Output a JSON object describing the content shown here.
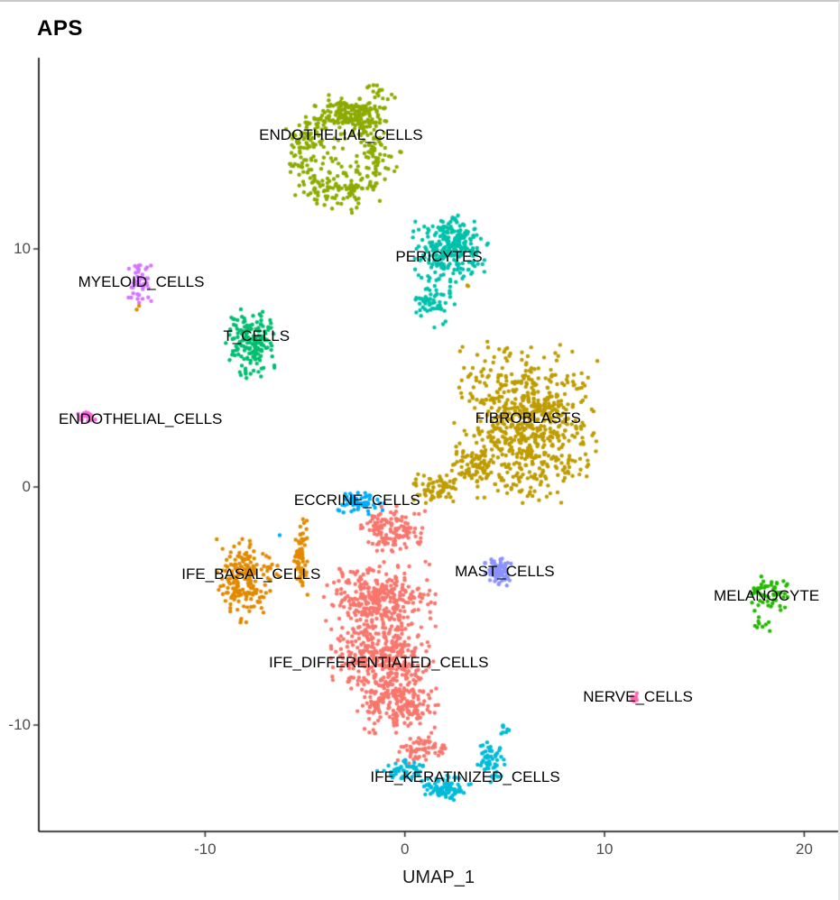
{
  "page": {
    "title": "APS"
  },
  "chart_data": {
    "type": "scatter",
    "title": "APS",
    "xlabel": "UMAP_1",
    "ylabel": "",
    "xlim": [
      -18.33,
      21.7
    ],
    "ylim": [
      -14.47,
      18.03
    ],
    "grid": false,
    "legend": "none",
    "point_radius_px": 2.2,
    "x_ticks": [
      {
        "value": -10,
        "label": "-10"
      },
      {
        "value": 0,
        "label": "0"
      },
      {
        "value": 10,
        "label": "10"
      },
      {
        "value": 20,
        "label": "20"
      }
    ],
    "y_ticks": [
      {
        "value": 10,
        "label": "10"
      },
      {
        "value": 0,
        "label": "0"
      },
      {
        "value": -10,
        "label": "-10"
      }
    ],
    "clusters": [
      {
        "name": "ENDOTHELIAL_CELLS",
        "color": "#8CAB00",
        "label": {
          "text": "ENDOTHELIAL_CELLS",
          "x": -3.2,
          "y": 14.77
        },
        "blobs": [
          {
            "shape": "ring",
            "cx": -3.3,
            "cy": 13.95,
            "rx": 2.35,
            "ry": 2.0,
            "n": 340
          },
          {
            "shape": "disc",
            "cx": -2.5,
            "cy": 15.75,
            "rx": 1.5,
            "ry": 0.6,
            "n": 110
          },
          {
            "shape": "disc",
            "cx": -1.2,
            "cy": 16.55,
            "rx": 0.9,
            "ry": 0.4,
            "n": 14
          },
          {
            "shape": "disc",
            "cx": -3.3,
            "cy": 13.95,
            "rx": 1.6,
            "ry": 1.4,
            "n": 30
          }
        ]
      },
      {
        "name": "PERICYTES",
        "color": "#00C1AB",
        "label": {
          "text": "PERICYTES",
          "x": 1.71,
          "y": 9.66
        },
        "blobs": [
          {
            "shape": "disc",
            "cx": 2.3,
            "cy": 10.05,
            "rx": 1.8,
            "ry": 1.35,
            "n": 260
          },
          {
            "shape": "disc",
            "cx": 1.4,
            "cy": 7.9,
            "rx": 1.0,
            "ry": 0.8,
            "n": 60
          },
          {
            "shape": "disc",
            "cx": 1.7,
            "cy": 6.9,
            "rx": 0.35,
            "ry": 0.25,
            "n": 3
          }
        ]
      },
      {
        "name": "MYELOID_CELLS",
        "color": "#D575FE",
        "label": {
          "text": "MYELOID_CELLS",
          "x": -13.2,
          "y": 8.6
        },
        "blobs": [
          {
            "shape": "disc",
            "cx": -13.24,
            "cy": 8.52,
            "rx": 0.55,
            "ry": 0.95,
            "n": 48
          }
        ]
      },
      {
        "name": "T_CELLS",
        "color": "#00BE70",
        "label": {
          "text": "T_CELLS",
          "x": -7.43,
          "y": 6.33
        },
        "blobs": [
          {
            "shape": "disc",
            "cx": -7.7,
            "cy": 6.05,
            "rx": 1.2,
            "ry": 1.35,
            "n": 170
          }
        ]
      },
      {
        "name": "ENDOTHELIAL_CELLS",
        "color": "#F962DD",
        "label": {
          "text": "ENDOTHELIAL_CELLS",
          "x": -13.24,
          "y": 2.84
        },
        "blobs": [
          {
            "shape": "disc",
            "cx": -15.95,
            "cy": 2.9,
            "rx": 0.55,
            "ry": 0.3,
            "n": 16
          }
        ]
      },
      {
        "name": "FIBROBLASTS",
        "color": "#BE9C00",
        "label": {
          "text": "FIBROBLASTS",
          "x": 6.17,
          "y": 2.88
        },
        "blobs": [
          {
            "shape": "disc",
            "cx": 6.1,
            "cy": 2.7,
            "rx": 3.3,
            "ry": 3.1,
            "n": 700
          },
          {
            "shape": "disc",
            "cx": 3.4,
            "cy": 0.9,
            "rx": 1.1,
            "ry": 0.8,
            "n": 70
          },
          {
            "shape": "disc",
            "cx": 1.6,
            "cy": -0.1,
            "rx": 1.3,
            "ry": 0.6,
            "n": 70
          },
          {
            "shape": "disc",
            "cx": 3.2,
            "cy": 8.5,
            "rx": 0.12,
            "ry": 0.1,
            "n": 2
          }
        ]
      },
      {
        "name": "ECCRINE_CELLS",
        "color": "#00ACFC",
        "label": {
          "text": "ECCRINE_CELLS",
          "x": -2.39,
          "y": -0.57
        },
        "blobs": [
          {
            "shape": "disc",
            "cx": -2.07,
            "cy": -0.72,
            "rx": 1.3,
            "ry": 0.45,
            "n": 60
          },
          {
            "shape": "disc",
            "cx": -6.26,
            "cy": -2.05,
            "rx": 0.05,
            "ry": 0.05,
            "n": 1
          }
        ]
      },
      {
        "name": "IFE_BASAL_CELLS",
        "color": "#E18A00",
        "label": {
          "text": "IFE_BASAL_CELLS",
          "x": -7.7,
          "y": -3.67
        },
        "blobs": [
          {
            "shape": "disc",
            "cx": -8.15,
            "cy": -3.94,
            "rx": 1.35,
            "ry": 1.6,
            "n": 180
          },
          {
            "shape": "disc",
            "cx": -5.18,
            "cy": -3.03,
            "rx": 0.4,
            "ry": 1.55,
            "n": 65
          },
          {
            "shape": "disc",
            "cx": -6.8,
            "cy": -3.6,
            "rx": 0.5,
            "ry": 0.5,
            "n": 8
          },
          {
            "shape": "disc",
            "cx": -13.35,
            "cy": 7.45,
            "rx": 0.1,
            "ry": 0.15,
            "n": 2
          }
        ]
      },
      {
        "name": "MAST_CELLS",
        "color": "#8B93FF",
        "label": {
          "text": "MAST_CELLS",
          "x": 5.0,
          "y": -3.56
        },
        "blobs": [
          {
            "shape": "disc",
            "cx": 4.68,
            "cy": -3.56,
            "rx": 0.63,
            "ry": 0.57,
            "n": 90
          }
        ]
      },
      {
        "name": "MELANOCYTE",
        "color": "#24B700",
        "label": {
          "text": "MELANOCYTE",
          "x": 18.11,
          "y": -4.58
        },
        "blobs": [
          {
            "shape": "disc",
            "cx": 18.3,
            "cy": -4.5,
            "rx": 0.95,
            "ry": 0.75,
            "n": 55
          },
          {
            "shape": "disc",
            "cx": 17.7,
            "cy": -5.75,
            "rx": 0.7,
            "ry": 0.4,
            "n": 9
          }
        ]
      },
      {
        "name": "IFE_DIFFERENTIATED_CELLS",
        "color": "#F8766D",
        "label": {
          "text": "IFE_DIFFERENTIATED_CELLS",
          "x": -1.31,
          "y": -7.39
        },
        "blobs": [
          {
            "shape": "disc",
            "cx": -0.63,
            "cy": -1.78,
            "rx": 1.5,
            "ry": 0.9,
            "n": 130
          },
          {
            "shape": "disc",
            "cx": -1.3,
            "cy": -4.8,
            "rx": 2.6,
            "ry": 1.6,
            "n": 350
          },
          {
            "shape": "disc",
            "cx": -1.08,
            "cy": -7.27,
            "rx": 2.4,
            "ry": 1.4,
            "n": 300
          },
          {
            "shape": "disc",
            "cx": -0.4,
            "cy": -9.17,
            "rx": 1.9,
            "ry": 1.1,
            "n": 200
          },
          {
            "shape": "disc",
            "cx": 0.72,
            "cy": -11.06,
            "rx": 1.2,
            "ry": 0.55,
            "n": 60
          }
        ]
      },
      {
        "name": "IFE_KERATINIZED_CELLS",
        "color": "#00BBDA",
        "label": {
          "text": "IFE_KERATINIZED_CELLS",
          "x": 3.02,
          "y": -12.2
        },
        "blobs": [
          {
            "shape": "disc",
            "cx": -0.1,
            "cy": -11.9,
            "rx": 1.2,
            "ry": 0.45,
            "n": 55
          },
          {
            "shape": "disc",
            "cx": 2.0,
            "cy": -12.6,
            "rx": 1.3,
            "ry": 0.5,
            "n": 90
          },
          {
            "shape": "disc",
            "cx": 4.3,
            "cy": -11.5,
            "rx": 0.7,
            "ry": 0.9,
            "n": 55
          },
          {
            "shape": "disc",
            "cx": 5.0,
            "cy": -10.2,
            "rx": 0.3,
            "ry": 0.4,
            "n": 8
          }
        ]
      },
      {
        "name": "NERVE_CELLS",
        "color": "#FF65AC",
        "label": {
          "text": "NERVE_CELLS",
          "x": 11.67,
          "y": -8.83
        },
        "blobs": [
          {
            "shape": "disc",
            "cx": 11.5,
            "cy": -8.86,
            "rx": 0.3,
            "ry": 0.25,
            "n": 10
          }
        ]
      }
    ]
  }
}
